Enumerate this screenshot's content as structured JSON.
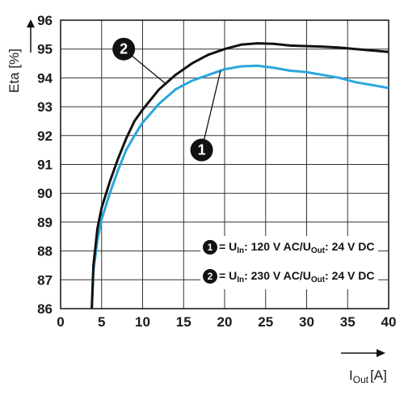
{
  "chart_data": {
    "type": "line",
    "xlabel": {
      "main": "I",
      "sub": "Out",
      "unit": "[A]"
    },
    "ylabel": "Eta [%]",
    "xlim": [
      0,
      40
    ],
    "ylim": [
      86,
      96
    ],
    "x_ticks": [
      "0",
      "5",
      "10",
      "15",
      "20",
      "25",
      "30",
      "35",
      "40"
    ],
    "y_ticks": [
      "86",
      "87",
      "88",
      "89",
      "90",
      "91",
      "92",
      "93",
      "94",
      "95",
      "96"
    ],
    "grid": true,
    "series": [
      {
        "id": "1",
        "color": "#2aa6dd",
        "legend": {
          "number": "1",
          "pre": "= U",
          "sub1": "In",
          "mid": ": 120 V AC/U",
          "sub2": "Out",
          "post": ": 24 V DC"
        },
        "points": [
          [
            3.8,
            86.0
          ],
          [
            4.0,
            87.3
          ],
          [
            4.5,
            88.4
          ],
          [
            5.0,
            89.1
          ],
          [
            6.0,
            90.0
          ],
          [
            7.0,
            90.8
          ],
          [
            8.0,
            91.5
          ],
          [
            9.0,
            92.0
          ],
          [
            10.0,
            92.45
          ],
          [
            12.0,
            93.1
          ],
          [
            14.0,
            93.6
          ],
          [
            16.0,
            93.9
          ],
          [
            18.0,
            94.1
          ],
          [
            20.0,
            94.3
          ],
          [
            22.0,
            94.4
          ],
          [
            24.0,
            94.42
          ],
          [
            26.0,
            94.35
          ],
          [
            28.0,
            94.25
          ],
          [
            30.0,
            94.2
          ],
          [
            32.0,
            94.1
          ],
          [
            34.0,
            94.0
          ],
          [
            36.0,
            93.85
          ],
          [
            38.0,
            93.75
          ],
          [
            40.0,
            93.65
          ]
        ]
      },
      {
        "id": "2",
        "color": "#111111",
        "legend": {
          "number": "2",
          "pre": "= U",
          "sub1": "In",
          "mid": ": 230 V AC/U",
          "sub2": "Out",
          "post": ": 24 V DC"
        },
        "points": [
          [
            3.8,
            86.0
          ],
          [
            4.0,
            87.5
          ],
          [
            4.5,
            88.8
          ],
          [
            5.0,
            89.5
          ],
          [
            6.0,
            90.4
          ],
          [
            7.0,
            91.2
          ],
          [
            8.0,
            91.9
          ],
          [
            9.0,
            92.5
          ],
          [
            10.0,
            92.9
          ],
          [
            12.0,
            93.6
          ],
          [
            14.0,
            94.1
          ],
          [
            16.0,
            94.5
          ],
          [
            18.0,
            94.8
          ],
          [
            20.0,
            95.0
          ],
          [
            22.0,
            95.15
          ],
          [
            24.0,
            95.2
          ],
          [
            26.0,
            95.18
          ],
          [
            28.0,
            95.12
          ],
          [
            30.0,
            95.1
          ],
          [
            32.0,
            95.08
          ],
          [
            34.0,
            95.05
          ],
          [
            36.0,
            95.0
          ],
          [
            38.0,
            94.95
          ],
          [
            40.0,
            94.9
          ]
        ]
      }
    ]
  }
}
